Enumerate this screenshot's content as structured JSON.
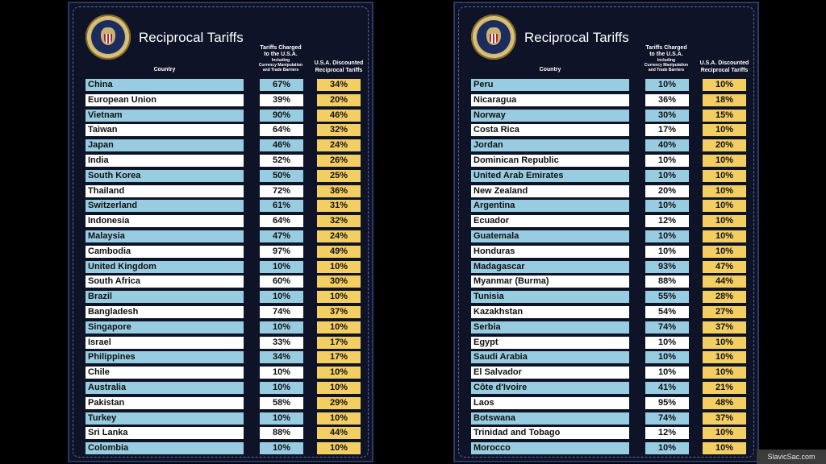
{
  "header": {
    "title": "Reciprocal Tariffs",
    "col_country": "Country",
    "col_charged_line1": "Tariffs Charged",
    "col_charged_line2": "to the U.S.A.",
    "col_charged_sub1": "Including",
    "col_charged_sub2": "Currency Manipulation",
    "col_charged_sub3": "and Trade Barriers",
    "col_discounted_line1": "U.S.A. Discounted",
    "col_discounted_line2": "Reciprocal Tariffs"
  },
  "watermark": "SlavicSac.com",
  "colors": {
    "panel_bg": "#0e1328",
    "row_blue": "#98cce0",
    "row_white": "#ffffff",
    "discount_yellow": "#f3cf63"
  },
  "chart_data": {
    "type": "table",
    "columns": [
      "Country",
      "Tariffs Charged to the U.S.A.",
      "U.S.A. Discounted Reciprocal Tariffs"
    ],
    "left_rows": [
      [
        "China",
        "67%",
        "34%"
      ],
      [
        "European Union",
        "39%",
        "20%"
      ],
      [
        "Vietnam",
        "90%",
        "46%"
      ],
      [
        "Taiwan",
        "64%",
        "32%"
      ],
      [
        "Japan",
        "46%",
        "24%"
      ],
      [
        "India",
        "52%",
        "26%"
      ],
      [
        "South Korea",
        "50%",
        "25%"
      ],
      [
        "Thailand",
        "72%",
        "36%"
      ],
      [
        "Switzerland",
        "61%",
        "31%"
      ],
      [
        "Indonesia",
        "64%",
        "32%"
      ],
      [
        "Malaysia",
        "47%",
        "24%"
      ],
      [
        "Cambodia",
        "97%",
        "49%"
      ],
      [
        "United Kingdom",
        "10%",
        "10%"
      ],
      [
        "South Africa",
        "60%",
        "30%"
      ],
      [
        "Brazil",
        "10%",
        "10%"
      ],
      [
        "Bangladesh",
        "74%",
        "37%"
      ],
      [
        "Singapore",
        "10%",
        "10%"
      ],
      [
        "Israel",
        "33%",
        "17%"
      ],
      [
        "Philippines",
        "34%",
        "17%"
      ],
      [
        "Chile",
        "10%",
        "10%"
      ],
      [
        "Australia",
        "10%",
        "10%"
      ],
      [
        "Pakistan",
        "58%",
        "29%"
      ],
      [
        "Turkey",
        "10%",
        "10%"
      ],
      [
        "Sri Lanka",
        "88%",
        "44%"
      ],
      [
        "Colombia",
        "10%",
        "10%"
      ]
    ],
    "right_rows": [
      [
        "Peru",
        "10%",
        "10%"
      ],
      [
        "Nicaragua",
        "36%",
        "18%"
      ],
      [
        "Norway",
        "30%",
        "15%"
      ],
      [
        "Costa Rica",
        "17%",
        "10%"
      ],
      [
        "Jordan",
        "40%",
        "20%"
      ],
      [
        "Dominican Republic",
        "10%",
        "10%"
      ],
      [
        "United Arab Emirates",
        "10%",
        "10%"
      ],
      [
        "New Zealand",
        "20%",
        "10%"
      ],
      [
        "Argentina",
        "10%",
        "10%"
      ],
      [
        "Ecuador",
        "12%",
        "10%"
      ],
      [
        "Guatemala",
        "10%",
        "10%"
      ],
      [
        "Honduras",
        "10%",
        "10%"
      ],
      [
        "Madagascar",
        "93%",
        "47%"
      ],
      [
        "Myanmar (Burma)",
        "88%",
        "44%"
      ],
      [
        "Tunisia",
        "55%",
        "28%"
      ],
      [
        "Kazakhstan",
        "54%",
        "27%"
      ],
      [
        "Serbia",
        "74%",
        "37%"
      ],
      [
        "Egypt",
        "10%",
        "10%"
      ],
      [
        "Saudi Arabia",
        "10%",
        "10%"
      ],
      [
        "El Salvador",
        "10%",
        "10%"
      ],
      [
        "Côte d'Ivoire",
        "41%",
        "21%"
      ],
      [
        "Laos",
        "95%",
        "48%"
      ],
      [
        "Botswana",
        "74%",
        "37%"
      ],
      [
        "Trinidad and Tobago",
        "12%",
        "10%"
      ],
      [
        "Morocco",
        "10%",
        "10%"
      ]
    ]
  }
}
